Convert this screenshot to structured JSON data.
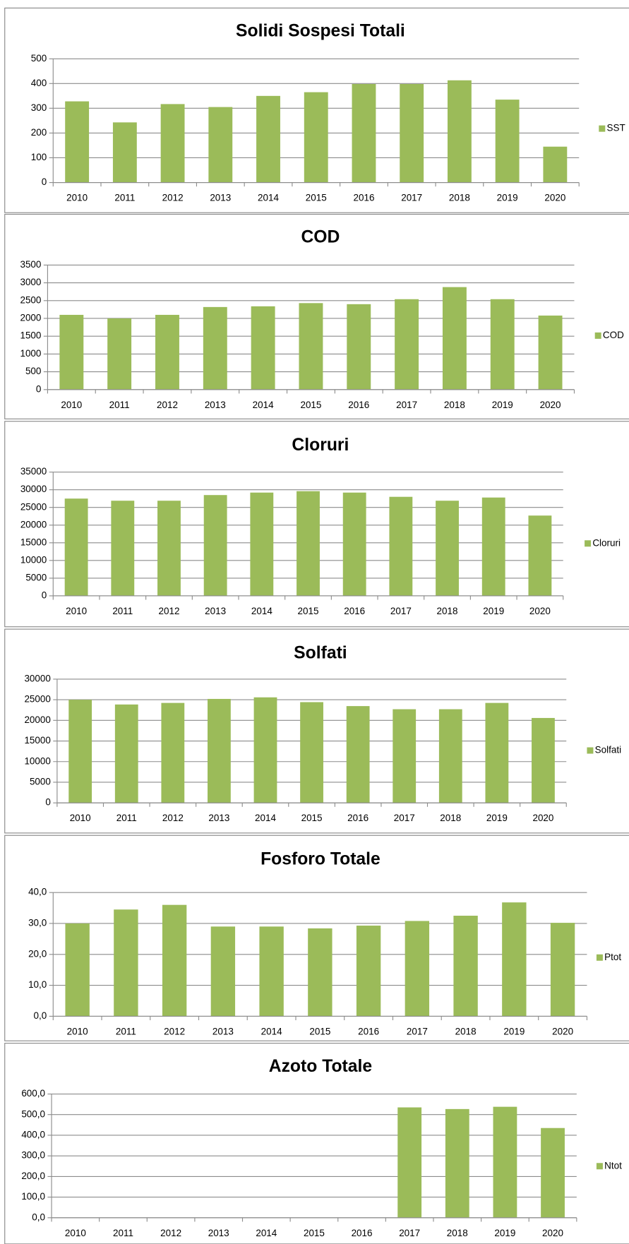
{
  "chart_data": [
    {
      "type": "bar",
      "title": "Solidi Sospesi Totali",
      "categories": [
        "2010",
        "2011",
        "2012",
        "2013",
        "2014",
        "2015",
        "2016",
        "2017",
        "2018",
        "2019",
        "2020"
      ],
      "series": [
        {
          "name": "SST",
          "color": "#9bbb59",
          "values": [
            328,
            243,
            317,
            305,
            350,
            365,
            398,
            398,
            413,
            335,
            145
          ]
        }
      ],
      "ylim": [
        0,
        500
      ],
      "yticks": [
        0,
        100,
        200,
        300,
        400,
        500
      ],
      "grid": true,
      "legend": "right"
    },
    {
      "type": "bar",
      "title": "COD",
      "categories": [
        "2010",
        "2011",
        "2012",
        "2013",
        "2014",
        "2015",
        "2016",
        "2017",
        "2018",
        "2019",
        "2020"
      ],
      "series": [
        {
          "name": "COD",
          "color": "#9bbb59",
          "values": [
            2100,
            2000,
            2100,
            2320,
            2340,
            2430,
            2400,
            2540,
            2880,
            2540,
            2080
          ]
        }
      ],
      "ylim": [
        0,
        3500
      ],
      "yticks": [
        0,
        500,
        1000,
        1500,
        2000,
        2500,
        3000,
        3500
      ],
      "grid": true,
      "legend": "right"
    },
    {
      "type": "bar",
      "title": "Cloruri",
      "categories": [
        "2010",
        "2011",
        "2012",
        "2013",
        "2014",
        "2015",
        "2016",
        "2017",
        "2018",
        "2019",
        "2020"
      ],
      "series": [
        {
          "name": "Cloruri",
          "color": "#9bbb59",
          "values": [
            27500,
            26900,
            26900,
            28500,
            29200,
            29600,
            29200,
            28000,
            26900,
            27800,
            22700
          ]
        }
      ],
      "ylim": [
        0,
        35000
      ],
      "yticks": [
        0,
        5000,
        10000,
        15000,
        20000,
        25000,
        30000,
        35000
      ],
      "grid": true,
      "legend": "right"
    },
    {
      "type": "bar",
      "title": "Solfati",
      "categories": [
        "2010",
        "2011",
        "2012",
        "2013",
        "2014",
        "2015",
        "2016",
        "2017",
        "2018",
        "2019",
        "2020"
      ],
      "series": [
        {
          "name": "Solfati",
          "color": "#9bbb59",
          "values": [
            25000,
            23850,
            24230,
            25200,
            25580,
            24420,
            23460,
            22700,
            22700,
            24230,
            20580
          ]
        }
      ],
      "ylim": [
        0,
        30000
      ],
      "yticks": [
        0,
        5000,
        10000,
        15000,
        20000,
        25000,
        30000
      ],
      "grid": true,
      "legend": "right"
    },
    {
      "type": "bar",
      "title": "Fosforo Totale",
      "categories": [
        "2010",
        "2011",
        "2012",
        "2013",
        "2014",
        "2015",
        "2016",
        "2017",
        "2018",
        "2019",
        "2020"
      ],
      "series": [
        {
          "name": "Ptot",
          "color": "#9bbb59",
          "values": [
            30,
            34.5,
            36,
            29,
            29,
            28.4,
            29.3,
            30.8,
            32.5,
            36.8,
            30.2
          ]
        }
      ],
      "ylim": [
        0,
        40
      ],
      "yticks": [
        {
          "value": 0,
          "label": "0,0"
        },
        {
          "value": 10,
          "label": "10,0"
        },
        {
          "value": 20,
          "label": "20,0"
        },
        {
          "value": 30,
          "label": "30,0"
        },
        {
          "value": 40,
          "label": "40,0"
        }
      ],
      "grid": true,
      "legend": "right"
    },
    {
      "type": "bar",
      "title": "Azoto Totale",
      "categories": [
        "2010",
        "2011",
        "2012",
        "2013",
        "2014",
        "2015",
        "2016",
        "2017",
        "2018",
        "2019",
        "2020"
      ],
      "series": [
        {
          "name": "Ntot",
          "color": "#9bbb59",
          "values": [
            null,
            null,
            null,
            null,
            null,
            null,
            null,
            535,
            527,
            538,
            435
          ]
        }
      ],
      "ylim": [
        0,
        600
      ],
      "yticks": [
        {
          "value": 0,
          "label": "0,0"
        },
        {
          "value": 100,
          "label": "100,0"
        },
        {
          "value": 200,
          "label": "200,0"
        },
        {
          "value": 300,
          "label": "300,0"
        },
        {
          "value": 400,
          "label": "400,0"
        },
        {
          "value": 500,
          "label": "500,0"
        },
        {
          "value": 600,
          "label": "600,0"
        }
      ],
      "grid": true,
      "legend": "right"
    }
  ]
}
